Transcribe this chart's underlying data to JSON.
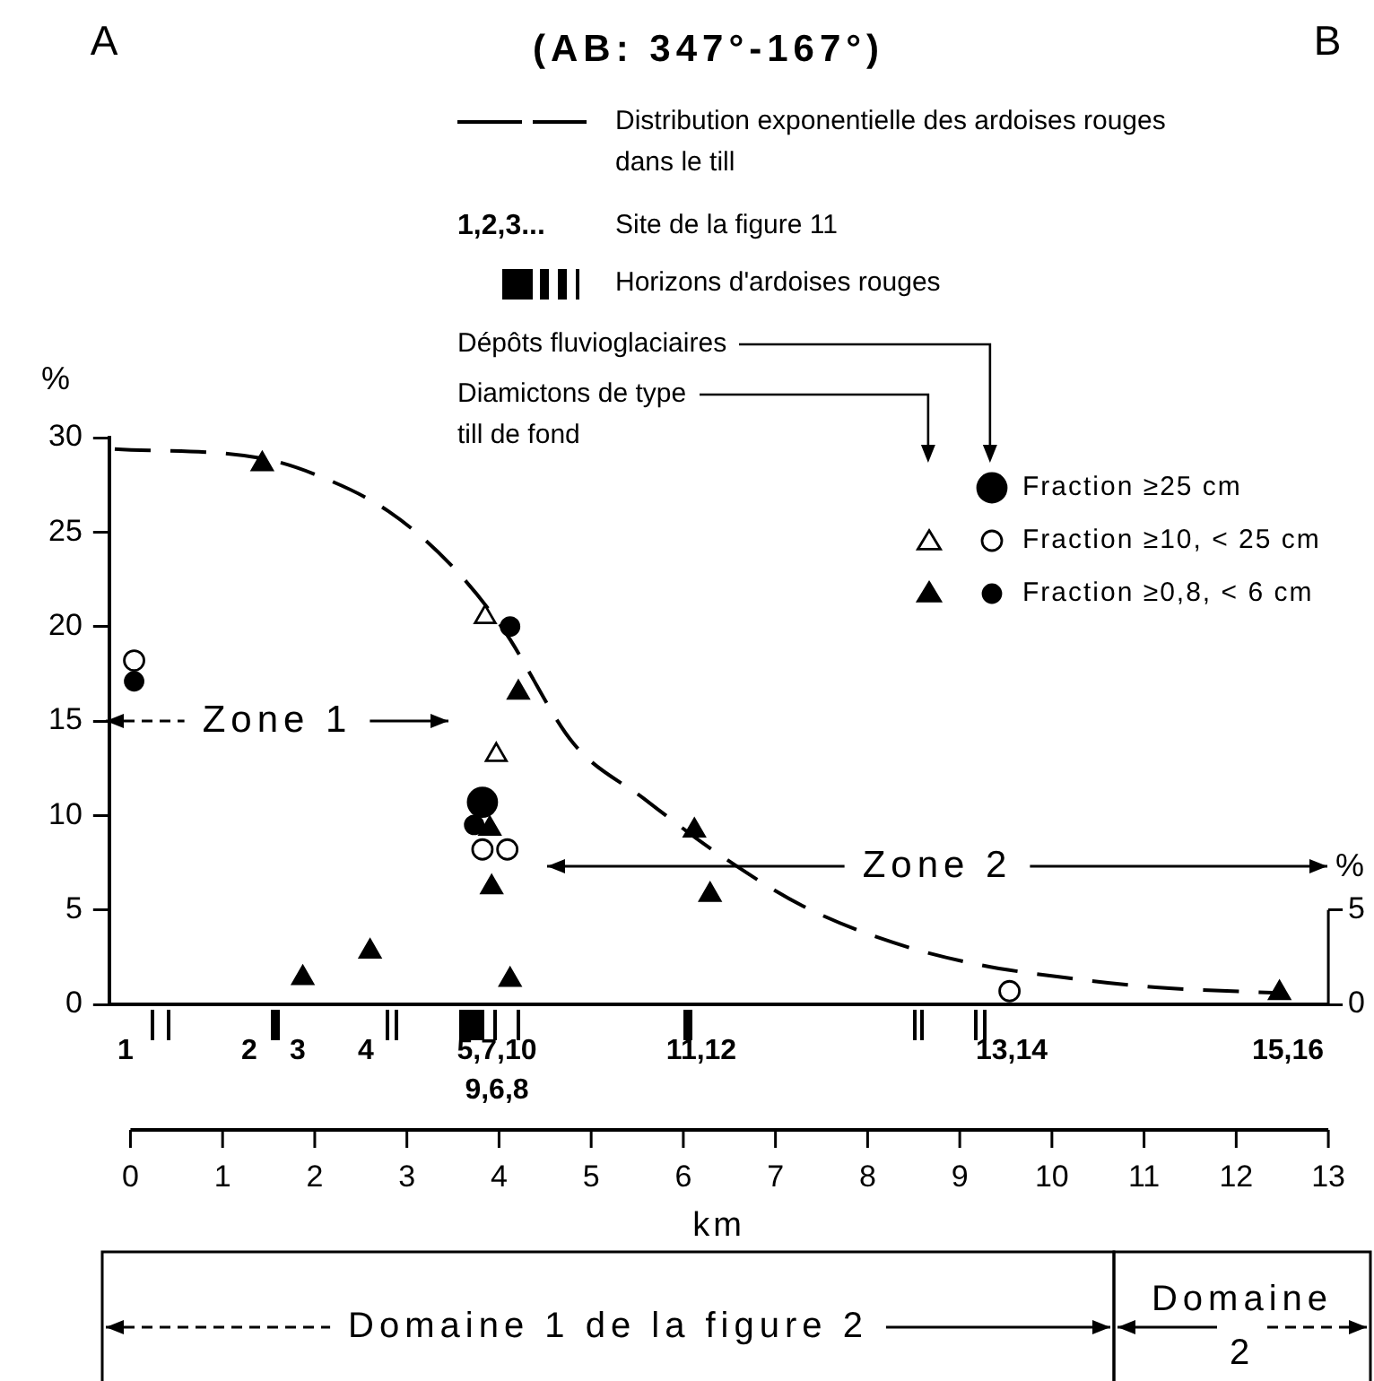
{
  "chart_data": {
    "type": "scatter",
    "title": "(AB: 347°-167°)",
    "xlabel": "km",
    "ylabel": "%",
    "y2label": "%",
    "xlim": [
      -0.23,
      13
    ],
    "xticks": [
      0,
      1,
      2,
      3,
      4,
      5,
      6,
      7,
      8,
      9,
      10,
      11,
      12,
      13
    ],
    "ylim": [
      0,
      30
    ],
    "yticks": [
      0,
      5,
      10,
      15,
      20,
      25,
      30
    ],
    "y2lim": [
      0,
      30
    ],
    "y2ticks": [
      0,
      5
    ],
    "grid": false,
    "legend": "top",
    "series": [
      {
        "type": "line",
        "name": "Distribution exponentielle des ardoises rouges dans le till",
        "color": "#000000",
        "line_style": "dashed",
        "marker": "none",
        "x": [
          -0.17,
          1.43,
          2.03,
          2.8,
          3.47,
          4.04,
          4.81,
          5.57,
          6.34,
          7.3,
          8.26,
          9.21,
          10.17,
          11.13,
          12.47
        ],
        "values": [
          29.4,
          28.9,
          28.0,
          26.1,
          23.3,
          19.9,
          13.8,
          10.9,
          8.1,
          5.2,
          3.3,
          2.1,
          1.4,
          0.9,
          0.6
        ]
      },
      {
        "type": "scatter",
        "name": "Fraction ≥25 cm",
        "color": "#000000",
        "marker": "circle",
        "x": [
          3.82
        ],
        "values": [
          10.7
        ]
      },
      {
        "type": "scatter",
        "color": "#ffffff",
        "marker": "triangle",
        "x": [
          3.85,
          3.97
        ],
        "values": [
          20.5,
          13.2
        ]
      },
      {
        "type": "scatter",
        "name": "Fraction ≥10, < 25 cm",
        "color": "#ffffff",
        "marker": "circle",
        "x": [
          0.04,
          3.82,
          4.09,
          9.54
        ],
        "values": [
          18.2,
          8.2,
          8.2,
          0.7
        ]
      },
      {
        "type": "scatter",
        "color": "#000000",
        "marker": "triangle",
        "x": [
          1.43,
          4.21,
          3.9,
          3.92,
          1.87,
          2.6,
          4.12,
          6.12,
          6.29,
          12.47
        ],
        "values": [
          28.6,
          16.5,
          9.3,
          6.2,
          1.4,
          2.8,
          1.3,
          9.2,
          5.8,
          0.6
        ]
      },
      {
        "type": "scatter",
        "name": "Fraction ≥0,8, < 6 cm",
        "color": "#000000",
        "marker": "circle",
        "x": [
          0.04,
          4.12,
          3.73
        ],
        "values": [
          17.1,
          20.0,
          9.5
        ]
      }
    ],
    "annotations": [
      "A",
      "B",
      "1,2,3...",
      "Site de la figure 11",
      "Horizons d'ardoises rouges",
      "Dépôts fluvioglaciaires",
      "Diamictons de type till de fond",
      "Zone 1",
      "Zone 2",
      "Domaine 1 de la figure 2",
      "Domaine 2",
      "1",
      "2",
      "3",
      "4",
      "5,7,10",
      "9,6,8",
      "11,12",
      "13,14",
      "15,16"
    ]
  }
}
